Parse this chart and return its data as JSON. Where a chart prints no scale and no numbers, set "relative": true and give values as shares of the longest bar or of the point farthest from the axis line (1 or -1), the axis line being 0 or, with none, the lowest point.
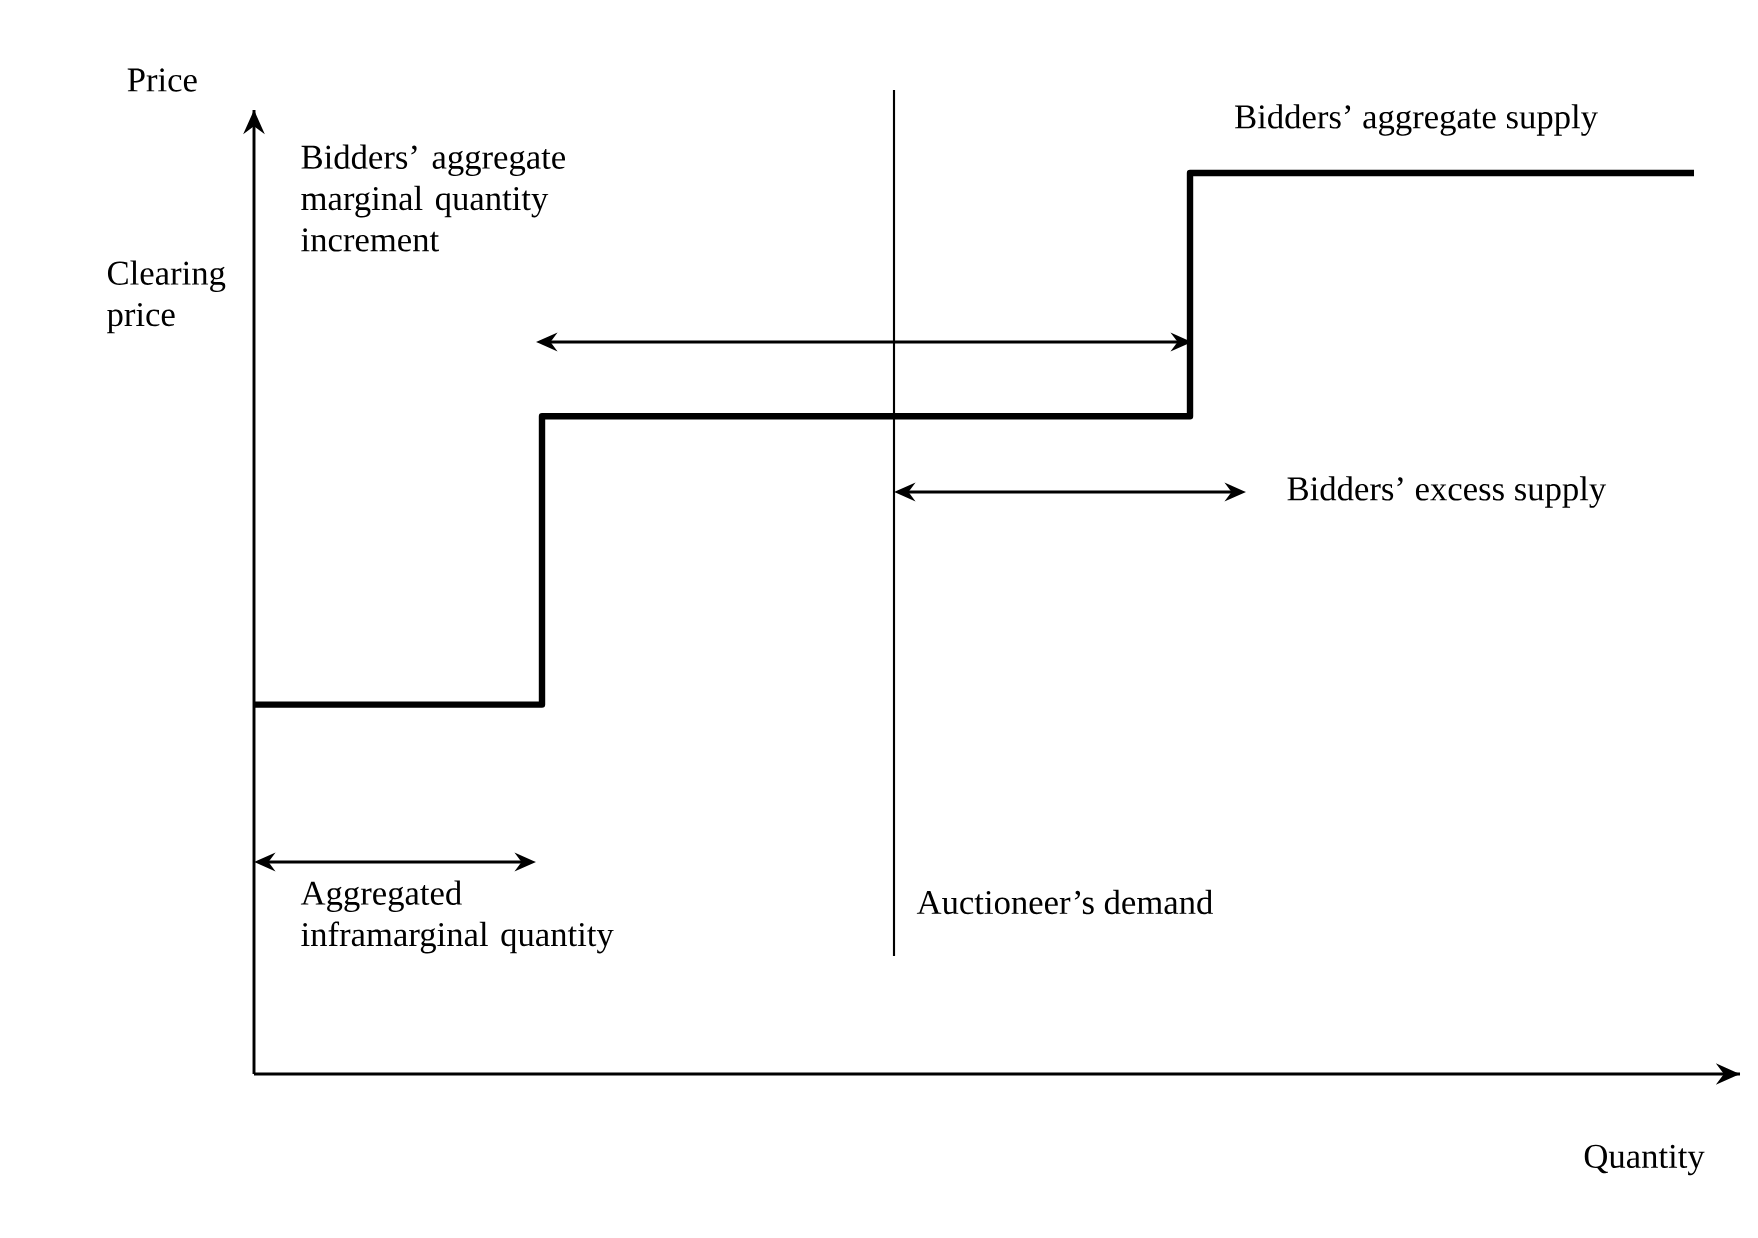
{
  "chart_data": {
    "type": "step",
    "relative": true,
    "xlabel": "Quantity",
    "ylabel": "Price",
    "categories": [
      null,
      null,
      null,
      null,
      null,
      null,
      null,
      null,
      null,
      null,
      null,
      null,
      null,
      null,
      null,
      null,
      null,
      null,
      null,
      null,
      null
    ],
    "series": [
      {
        "color": "#000000",
        "values": [
          0.41,
          0.41,
          0.41,
          0.41,
          0.73,
          0.73,
          0.73,
          0.73,
          0.73,
          0.73,
          0.73,
          0.73,
          0.73,
          1,
          1,
          1,
          1,
          1,
          1,
          1,
          1
        ]
      }
    ],
    "annotations": [
      "Bidders’ aggregate supply",
      "Bidders’ aggregate marginal quantity increment",
      "Bidders’ excess supply",
      "Aggregated inframarginal quantity",
      "Clearing price",
      "Auctioneer’s demand"
    ]
  }
}
